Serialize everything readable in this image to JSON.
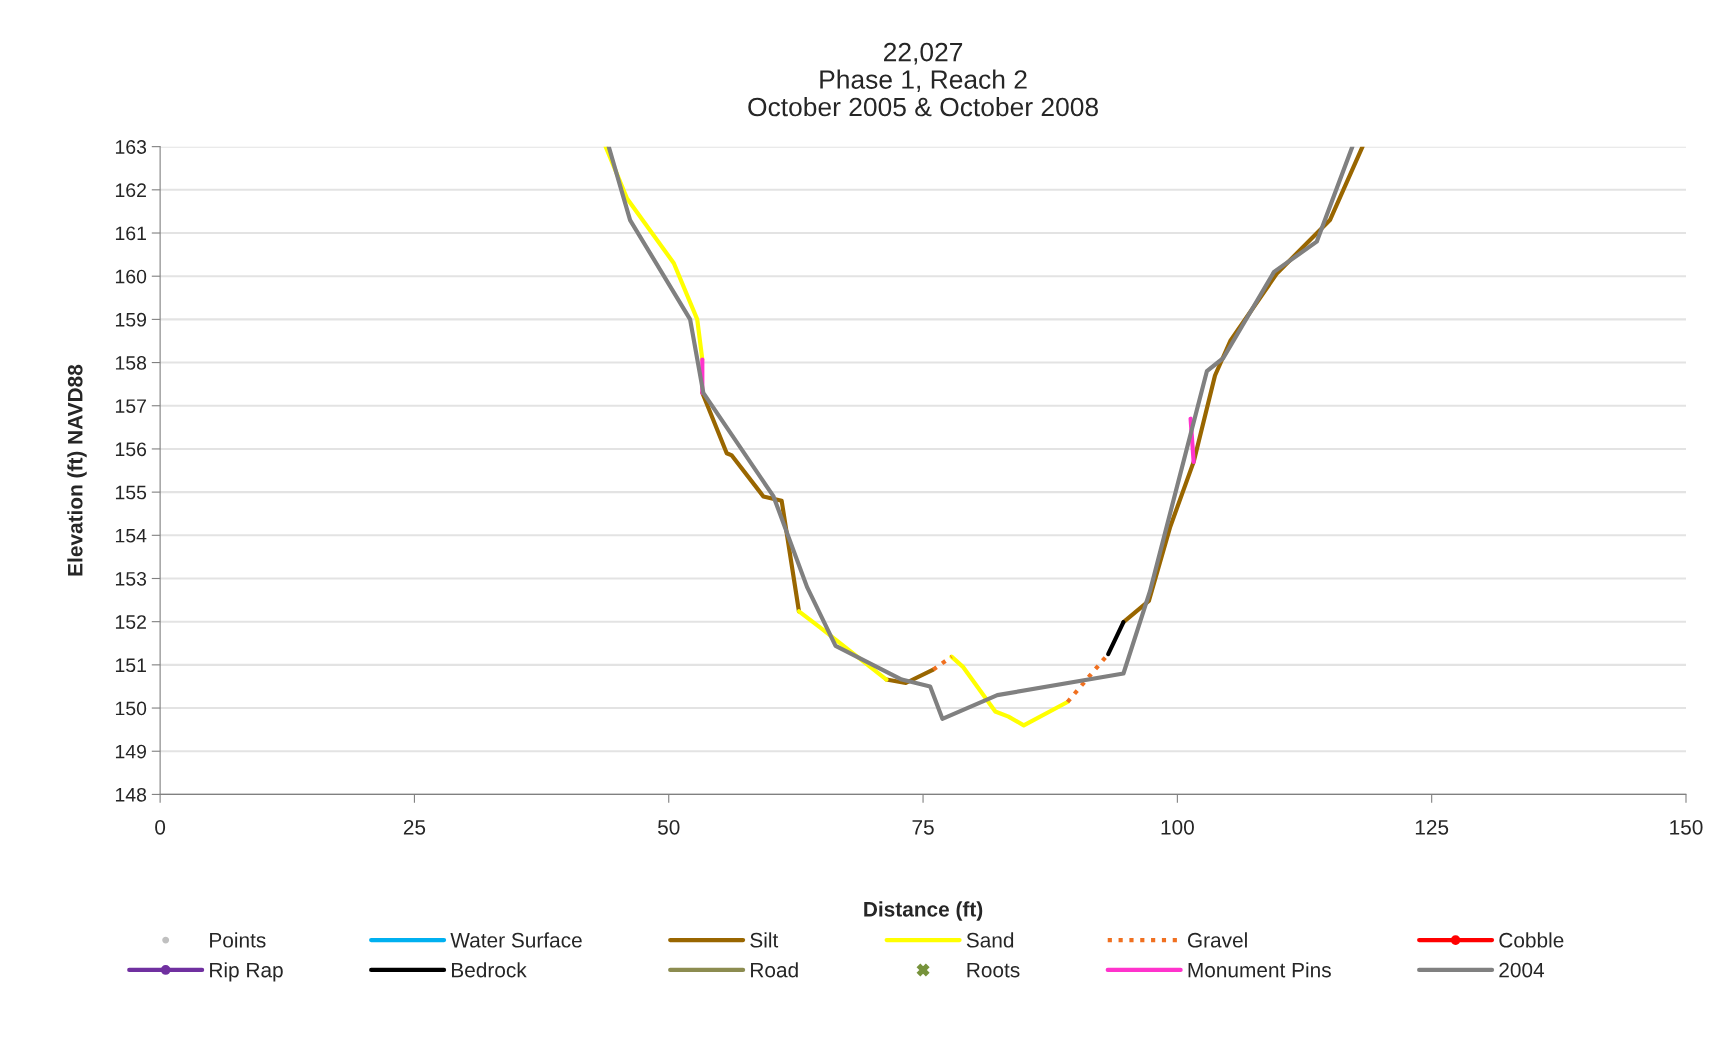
{
  "chart_data": {
    "type": "line",
    "title": "22,027\nPhase 1, Reach 2\nOctober 2005 & October 2008",
    "xlabel": "Distance (ft)",
    "ylabel": "Elevation (ft) NAVD88",
    "xlim": [
      0,
      150
    ],
    "xticks": [
      0,
      25,
      50,
      75,
      100,
      125,
      150
    ],
    "ylim": [
      148,
      163
    ],
    "yticks": [
      148,
      149,
      150,
      151,
      152,
      153,
      154,
      155,
      156,
      157,
      158,
      159,
      160,
      161,
      162,
      163
    ],
    "grid": "y",
    "legend": "bottom",
    "series": [
      {
        "name": "Points",
        "type": "scatter",
        "color": "#c0c0c0",
        "marker": "circle"
      },
      {
        "name": "Water Surface",
        "color": "#00b0f0"
      },
      {
        "name": "Silt",
        "color": "#996600",
        "x": [
          53.3,
          55.7,
          56.2,
          59.3,
          61.1,
          62.8,
          null,
          71.4,
          73.3,
          76.0,
          null,
          94.7,
          97.2,
          99.3,
          101.6,
          103.7,
          105.2,
          109.8,
          115.0,
          118.2
        ],
        "values": [
          157.3,
          155.9,
          155.85,
          154.9,
          154.8,
          152.24,
          null,
          150.66,
          150.58,
          150.89,
          null,
          151.99,
          152.48,
          154.2,
          155.7,
          157.7,
          158.5,
          160.07,
          161.3,
          163
        ]
      },
      {
        "name": "Sand",
        "color": "#ffff00",
        "x": [
          43.8,
          45.9,
          50.5,
          52.8,
          53.3,
          null,
          62.8,
          64.9,
          71.4,
          null,
          77.8,
          78.9,
          82.1,
          83.4,
          84.9,
          89.2
        ],
        "values": [
          163,
          161.8,
          160.3,
          159.0,
          158.07,
          null,
          152.24,
          151.86,
          150.66,
          null,
          151.19,
          150.96,
          149.92,
          149.8,
          149.6,
          150.14
        ]
      },
      {
        "name": "Gravel",
        "color": "#f07020",
        "line_style": "dotted",
        "x": [
          76.0,
          77.8,
          null,
          89.2,
          93.2
        ],
        "values": [
          150.89,
          151.19,
          null,
          150.14,
          151.25
        ]
      },
      {
        "name": "Cobble",
        "color": "#ff0000",
        "marker": "circle"
      },
      {
        "name": "Rip Rap",
        "color": "#7030a0",
        "marker": "circle"
      },
      {
        "name": "Bedrock",
        "color": "#000000",
        "x": [
          93.2,
          94.7
        ],
        "values": [
          151.25,
          151.99
        ]
      },
      {
        "name": "Road",
        "color": "#8c8c50"
      },
      {
        "name": "Roots",
        "type": "scatter",
        "color": "#77933c",
        "marker": "cross"
      },
      {
        "name": "Monument Pins",
        "color": "#ff33cc",
        "x": [
          53.3,
          53.3,
          null,
          101.3,
          101.6
        ],
        "values": [
          158.07,
          157.3,
          null,
          156.7,
          155.7
        ]
      },
      {
        "name": "2004",
        "color": "#808080",
        "x": [
          44.1,
          46.2,
          52.1,
          53.4,
          60.3,
          63.6,
          66.4,
          72.9,
          75.7,
          76.9,
          82.3,
          94.7,
          97.3,
          102.9,
          104.5,
          109.5,
          113.7,
          117.2
        ],
        "values": [
          163,
          161.3,
          159.0,
          157.3,
          154.9,
          152.8,
          151.44,
          150.66,
          150.5,
          149.75,
          150.3,
          150.8,
          152.7,
          157.8,
          158.1,
          160.1,
          160.8,
          163
        ]
      }
    ]
  }
}
